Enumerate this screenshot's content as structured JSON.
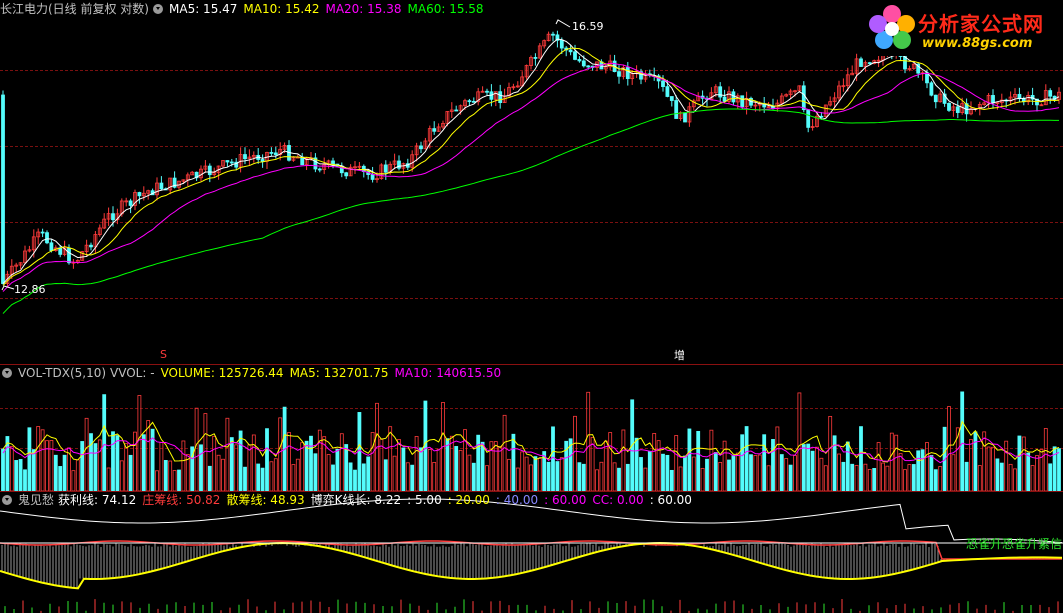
{
  "main": {
    "title": "长江电力(日线 前复权 对数)",
    "ma5": "MA5: 15.47",
    "ma10": "MA10: 15.42",
    "ma20": "MA20: 15.38",
    "ma60": "MA60: 15.58",
    "high_label": "16.59",
    "low_label": "12.86",
    "marker_s": "S",
    "marker_zeng": "增"
  },
  "volume": {
    "name": "VOL-TDX(5,10)",
    "vvol": "VVOL: -",
    "volume": "VOLUME: 125726.44",
    "ma5": "MA5: 132701.75",
    "ma10": "MA10: 140615.50"
  },
  "indicator": {
    "name": "鬼见愁",
    "profit": "获利线: 74.12",
    "banker": "庄筹线: 50.82",
    "retail": "散筹线: 48.93",
    "kline": "博弈K线长: 8.22",
    "v1": ": 5.00",
    "v2": ": 20.00",
    "v3": ": 40.00",
    "v4": ": 60.00",
    "cc": "CC: 0.00",
    "v5": ": 60.00",
    "signal": "恐雀升恐雀升紧信"
  },
  "logo": {
    "name": "分析家公式网",
    "url": "www.88gs.com"
  },
  "colors": {
    "up": "#ff3b3b",
    "down": "#54fcfc",
    "ma5": "#ffffff",
    "ma10": "#ffff00",
    "ma20": "#ff00ff",
    "ma60": "#00ff00"
  },
  "chart_data": {
    "type": "line",
    "title": "长江电力(日线 前复权 对数)",
    "price_range_labels": {
      "high": 16.59,
      "low": 12.86
    },
    "series": [
      {
        "name": "MA5",
        "last": 15.47
      },
      {
        "name": "MA10",
        "last": 15.42
      },
      {
        "name": "MA20",
        "last": 15.38
      },
      {
        "name": "MA60",
        "last": 15.58
      }
    ],
    "volume": {
      "VOLUME": 125726.44,
      "MA5": 132701.75,
      "MA10": 140615.5
    },
    "indicator": {
      "获利线": 74.12,
      "庄筹线": 50.82,
      "散筹线": 48.93,
      "博弈K线长": 8.22,
      "levels": [
        5,
        20,
        40,
        60
      ],
      "CC": 0
    }
  }
}
